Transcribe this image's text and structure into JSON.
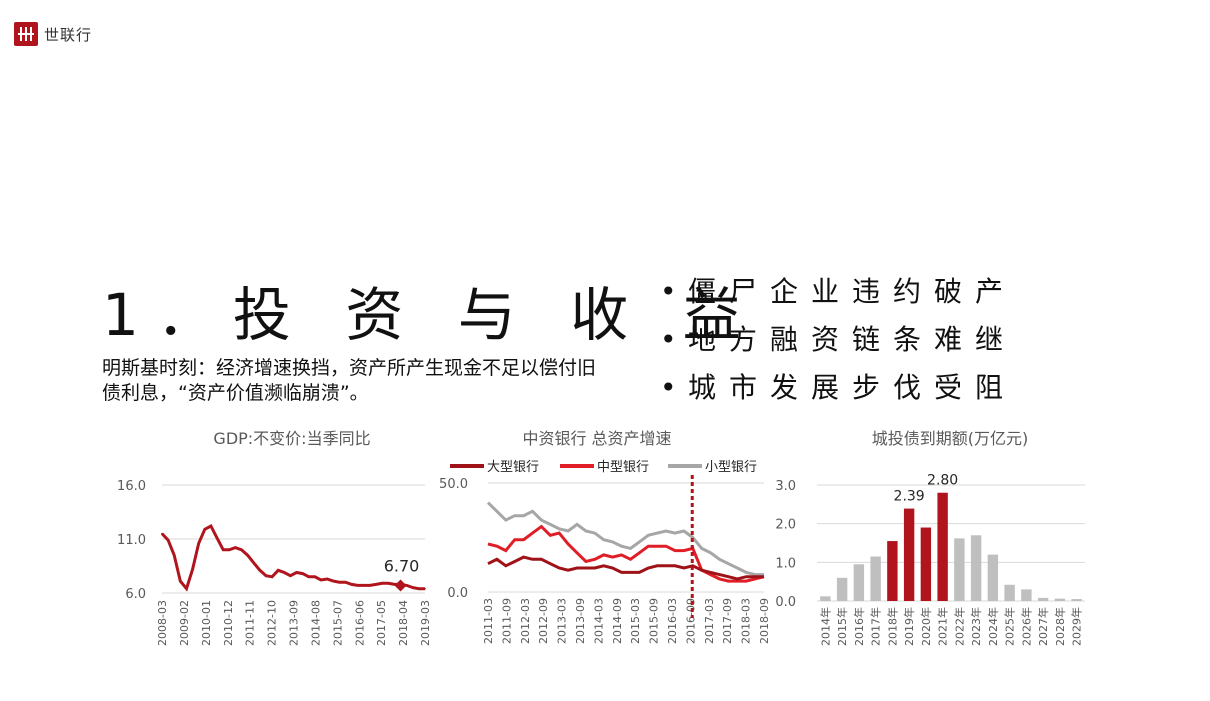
{
  "header": {
    "logo_text": "世联行"
  },
  "slide": {
    "title": "1．投 资 与 收 益",
    "subtitle": "明斯基时刻：经济增速换挡，资产所产生现金不足以偿付旧债利息，“资产价值濒临崩溃”。",
    "bullets": [
      "僵尸企业违约破产",
      "地方融资链条难继",
      "城市发展步伐受阻"
    ]
  },
  "chart_data": [
    {
      "type": "line",
      "title": "GDP:不变价:当季同比",
      "ylim": [
        6.0,
        16.0
      ],
      "yticks": [
        "16.0",
        "11.0",
        "6.0"
      ],
      "xticks": [
        "2008-03",
        "2009-02",
        "2010-01",
        "2010-12",
        "2011-11",
        "2012-10",
        "2013-09",
        "2014-08",
        "2015-07",
        "2016-06",
        "2017-05",
        "2018-04",
        "2019-03"
      ],
      "series": [
        {
          "color": "#b0141c",
          "values": [
            11.5,
            10.9,
            9.5,
            7.1,
            6.4,
            8.2,
            10.6,
            11.9,
            12.2,
            11.1,
            10.0,
            10.0,
            10.2,
            10.0,
            9.5,
            8.8,
            8.1,
            7.6,
            7.5,
            8.1,
            7.9,
            7.6,
            7.9,
            7.8,
            7.5,
            7.5,
            7.2,
            7.3,
            7.1,
            7.0,
            7.0,
            6.8,
            6.7,
            6.7,
            6.7,
            6.8,
            6.9,
            6.9,
            6.8,
            6.8,
            6.7,
            6.5,
            6.4,
            6.4
          ]
        }
      ],
      "annotation": {
        "label": "6.70",
        "value": 6.7
      }
    },
    {
      "type": "line",
      "title": "中资银行 总资产增速",
      "ylim": [
        0,
        50
      ],
      "yticks": [
        "50.0",
        "0.0"
      ],
      "xticks": [
        "2011-03",
        "2011-09",
        "2012-03",
        "2012-09",
        "2013-03",
        "2013-09",
        "2014-03",
        "2014-09",
        "2015-03",
        "2015-09",
        "2016-03",
        "2016-09",
        "2017-03",
        "2017-09",
        "2018-03",
        "2018-09"
      ],
      "series": [
        {
          "name": "大型银行",
          "color": "#9e1218",
          "values": [
            13,
            15,
            12,
            14,
            16,
            15,
            15,
            13,
            11,
            10,
            11,
            11,
            11,
            12,
            11,
            9,
            9,
            9,
            11,
            12,
            12,
            12,
            11,
            12,
            10,
            9,
            8,
            7,
            6,
            7,
            7,
            7
          ]
        },
        {
          "name": "中型银行",
          "color": "#e01e27",
          "values": [
            22,
            21,
            19,
            24,
            24,
            27,
            30,
            26,
            27,
            22,
            18,
            14,
            15,
            17,
            16,
            17,
            15,
            18,
            21,
            21,
            21,
            19,
            19,
            20,
            10,
            8,
            6,
            5,
            5,
            5,
            6,
            7
          ]
        },
        {
          "name": "小型银行",
          "color": "#a6a6a6",
          "values": [
            41,
            37,
            33,
            35,
            35,
            37,
            33,
            31,
            29,
            28,
            31,
            28,
            27,
            24,
            23,
            21,
            20,
            23,
            26,
            27,
            28,
            27,
            28,
            25,
            20,
            18,
            15,
            13,
            11,
            9,
            8,
            8
          ]
        }
      ],
      "marker_line_category": "2016-09"
    },
    {
      "type": "bar",
      "title": "城投债到期额(万亿元)",
      "ylim": [
        0,
        3.0
      ],
      "yticks": [
        "3.0",
        "2.0",
        "1.0",
        "0.0"
      ],
      "categories": [
        "2014年",
        "2015年",
        "2016年",
        "2017年",
        "2018年",
        "2019年",
        "2020年",
        "2021年",
        "2022年",
        "2023年",
        "2024年",
        "2025年",
        "2026年",
        "2027年",
        "2028年",
        "2029年"
      ],
      "values": [
        0.12,
        0.6,
        0.95,
        1.15,
        1.55,
        2.39,
        1.9,
        2.8,
        1.62,
        1.7,
        1.2,
        0.42,
        0.3,
        0.08,
        0.06,
        0.05
      ],
      "highlight": [
        false,
        false,
        false,
        false,
        true,
        true,
        true,
        true,
        false,
        false,
        false,
        false,
        false,
        false,
        false,
        false
      ],
      "labels": [
        "",
        "",
        "",
        "",
        "",
        "2.39",
        "",
        "2.80",
        "",
        "",
        "",
        "",
        "",
        "",
        "",
        ""
      ],
      "colors": {
        "highlight": "#b0141c",
        "normal": "#bfbfbf"
      }
    }
  ]
}
